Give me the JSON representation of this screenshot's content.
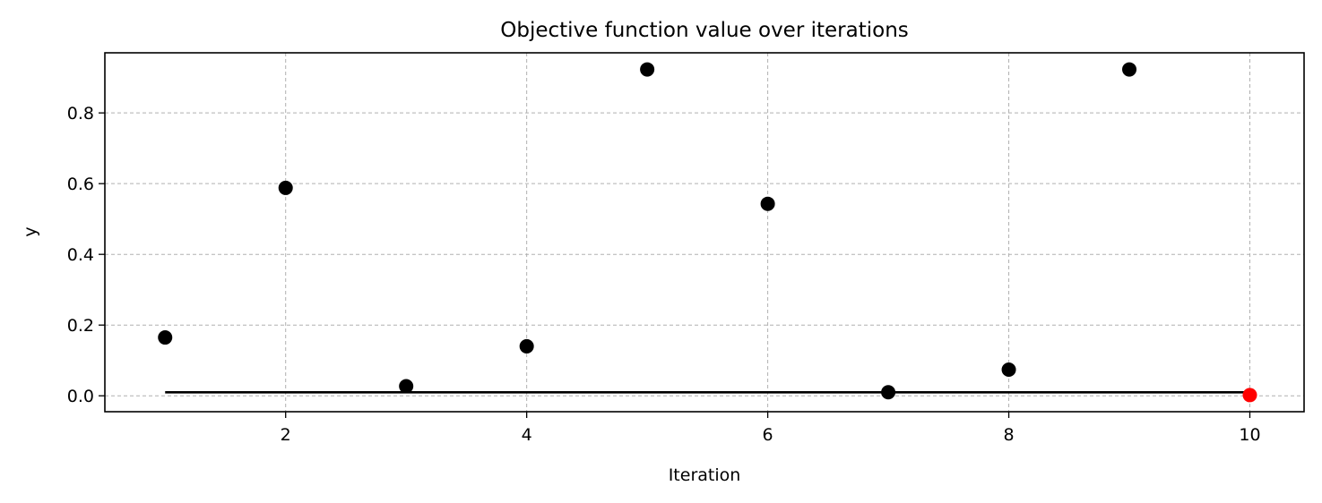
{
  "chart_data": {
    "type": "scatter",
    "title": "Objective function value over iterations",
    "xlabel": "Iteration",
    "ylabel": "y",
    "xlim": [
      0.5,
      10.45
    ],
    "ylim": [
      -0.045,
      0.97
    ],
    "xticks": [
      2,
      4,
      6,
      8,
      10
    ],
    "yticks": [
      0.0,
      0.2,
      0.4,
      0.6,
      0.8
    ],
    "xtick_labels": [
      "2",
      "4",
      "6",
      "8",
      "10"
    ],
    "ytick_labels": [
      "0.0",
      "0.2",
      "0.4",
      "0.6",
      "0.8"
    ],
    "grid": true,
    "series": [
      {
        "kind": "scatter",
        "color": "#000000",
        "x": [
          1,
          2,
          3,
          4,
          5,
          6,
          7,
          8,
          9
        ],
        "y": [
          0.165,
          0.588,
          0.027,
          0.14,
          0.923,
          0.543,
          0.01,
          0.074,
          0.923
        ]
      },
      {
        "kind": "scatter",
        "color": "#ff0000",
        "x": [
          10
        ],
        "y": [
          0.002
        ]
      },
      {
        "kind": "line",
        "color": "#000000",
        "x": [
          1,
          10
        ],
        "y": [
          0.01,
          0.01
        ]
      }
    ]
  }
}
